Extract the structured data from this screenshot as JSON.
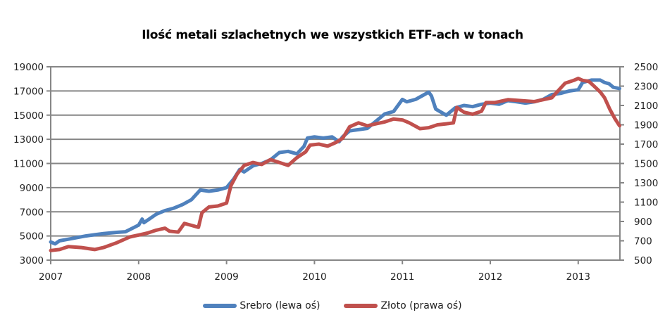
{
  "chart_data": {
    "type": "line",
    "title": "Ilość metali szlachetnych we wszystkich ETF-ach w tonach",
    "xlabel": "",
    "ylabel": "",
    "x_ticks": [
      "2007",
      "2008",
      "2009",
      "2010",
      "2011",
      "2012",
      "2013"
    ],
    "xlim": [
      2007.0,
      2013.47
    ],
    "y_left": {
      "ticks": [
        3000,
        5000,
        7000,
        9000,
        11000,
        13000,
        15000,
        17000,
        19000
      ],
      "range": [
        3000,
        19000
      ]
    },
    "y_right": {
      "ticks": [
        500,
        700,
        900,
        1100,
        1300,
        1500,
        1700,
        1900,
        2100,
        2300,
        2500
      ],
      "range": [
        500,
        2500
      ]
    },
    "grid": true,
    "legend_position": "bottom",
    "series": [
      {
        "name": "Srebro (lewa oś)",
        "axis": "left",
        "color": "#4F81BD",
        "x": [
          2007.0,
          2007.05,
          2007.1,
          2007.25,
          2007.4,
          2007.5,
          2007.6,
          2007.75,
          2007.85,
          2008.0,
          2008.04,
          2008.06,
          2008.1,
          2008.2,
          2008.3,
          2008.4,
          2008.5,
          2008.6,
          2008.7,
          2008.8,
          2008.9,
          2009.0,
          2009.08,
          2009.15,
          2009.2,
          2009.3,
          2009.4,
          2009.5,
          2009.6,
          2009.7,
          2009.8,
          2009.88,
          2009.92,
          2010.0,
          2010.1,
          2010.2,
          2010.28,
          2010.32,
          2010.4,
          2010.5,
          2010.6,
          2010.7,
          2010.8,
          2010.9,
          2011.0,
          2011.05,
          2011.15,
          2011.25,
          2011.3,
          2011.33,
          2011.38,
          2011.45,
          2011.5,
          2011.6,
          2011.7,
          2011.8,
          2011.9,
          2012.0,
          2012.1,
          2012.2,
          2012.3,
          2012.4,
          2012.5,
          2012.6,
          2012.7,
          2012.8,
          2012.9,
          2013.0,
          2013.05,
          2013.15,
          2013.25,
          2013.3,
          2013.35,
          2013.4,
          2013.47
        ],
        "values": [
          4500,
          4350,
          4600,
          4800,
          5000,
          5100,
          5200,
          5300,
          5350,
          5900,
          6400,
          6100,
          6300,
          6800,
          7100,
          7300,
          7600,
          8000,
          8800,
          8700,
          8800,
          9000,
          9700,
          10500,
          10300,
          10800,
          11000,
          11300,
          11900,
          12000,
          11800,
          12400,
          13100,
          13200,
          13100,
          13200,
          12800,
          13200,
          13700,
          13800,
          13900,
          14500,
          15100,
          15300,
          16300,
          16100,
          16300,
          16700,
          16900,
          16600,
          15500,
          15200,
          15000,
          15600,
          15800,
          15700,
          15900,
          16000,
          15900,
          16200,
          16100,
          16000,
          16100,
          16300,
          16700,
          16800,
          17000,
          17100,
          17700,
          17900,
          17900,
          17700,
          17600,
          17300,
          17200
        ]
      },
      {
        "name": "Złoto (prawa oś)",
        "axis": "right",
        "color": "#C0504D",
        "x": [
          2007.0,
          2007.1,
          2007.2,
          2007.35,
          2007.5,
          2007.6,
          2007.75,
          2007.9,
          2008.0,
          2008.1,
          2008.2,
          2008.3,
          2008.35,
          2008.45,
          2008.52,
          2008.6,
          2008.68,
          2008.72,
          2008.8,
          2008.9,
          2009.0,
          2009.05,
          2009.12,
          2009.2,
          2009.3,
          2009.4,
          2009.5,
          2009.6,
          2009.7,
          2009.8,
          2009.9,
          2009.95,
          2010.05,
          2010.15,
          2010.25,
          2010.32,
          2010.4,
          2010.5,
          2010.6,
          2010.7,
          2010.8,
          2010.9,
          2011.0,
          2011.08,
          2011.2,
          2011.3,
          2011.4,
          2011.5,
          2011.58,
          2011.62,
          2011.7,
          2011.8,
          2011.9,
          2011.95,
          2012.05,
          2012.2,
          2012.35,
          2012.5,
          2012.6,
          2012.7,
          2012.75,
          2012.85,
          2012.95,
          2013.0,
          2013.05,
          2013.12,
          2013.18,
          2013.25,
          2013.3,
          2013.36,
          2013.42,
          2013.47
        ],
        "values": [
          600,
          610,
          640,
          630,
          610,
          630,
          680,
          740,
          760,
          780,
          810,
          830,
          800,
          790,
          880,
          860,
          840,
          990,
          1050,
          1060,
          1090,
          1270,
          1390,
          1480,
          1510,
          1490,
          1540,
          1510,
          1480,
          1560,
          1620,
          1690,
          1700,
          1680,
          1720,
          1760,
          1880,
          1920,
          1890,
          1910,
          1930,
          1960,
          1950,
          1920,
          1860,
          1870,
          1900,
          1910,
          1920,
          2080,
          2030,
          2010,
          2040,
          2130,
          2130,
          2160,
          2150,
          2140,
          2160,
          2180,
          2230,
          2330,
          2360,
          2380,
          2360,
          2350,
          2300,
          2240,
          2180,
          2060,
          1960,
          1890
        ]
      }
    ]
  },
  "title": "Ilość metali szlachetnych we wszystkich ETF-ach w tonach",
  "legend": {
    "silver": {
      "label": "Srebro (lewa oś)",
      "color": "#4F81BD"
    },
    "gold": {
      "label": "Złoto (prawa oś)",
      "color": "#C0504D"
    }
  }
}
